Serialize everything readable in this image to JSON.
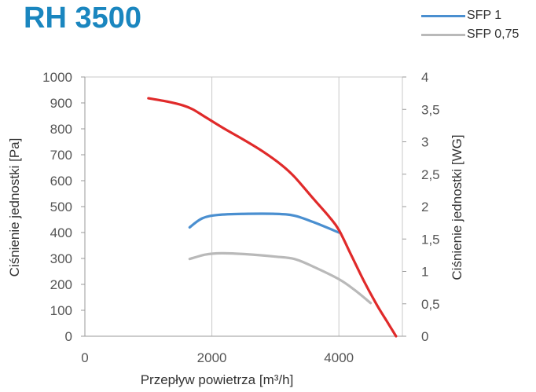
{
  "title": "RH 3500",
  "chart_data": {
    "type": "line",
    "title": "RH 3500",
    "xlabel": "Przepływ powietrza [m³/h]",
    "ylabel_left": "Ciśnienie jednostki [Pa]",
    "ylabel_right": "Ciśnienie jednostki [WG]",
    "xlim": [
      0,
      5000
    ],
    "ylim_left": [
      0,
      1000
    ],
    "ylim_right": [
      0,
      4
    ],
    "x_ticks": [
      {
        "value": 0,
        "label": "0"
      },
      {
        "value": 2000,
        "label": "2000"
      },
      {
        "value": 4000,
        "label": "4000"
      }
    ],
    "y_ticks_left": [
      {
        "value": 0,
        "label": "0"
      },
      {
        "value": 100,
        "label": "100"
      },
      {
        "value": 200,
        "label": "200"
      },
      {
        "value": 300,
        "label": "300"
      },
      {
        "value": 400,
        "label": "400"
      },
      {
        "value": 500,
        "label": "500"
      },
      {
        "value": 600,
        "label": "600"
      },
      {
        "value": 700,
        "label": "700"
      },
      {
        "value": 800,
        "label": "800"
      },
      {
        "value": 900,
        "label": "900"
      },
      {
        "value": 1000,
        "label": "1000"
      }
    ],
    "y_ticks_right": [
      {
        "value": 0,
        "label": "0"
      },
      {
        "value": 0.5,
        "label": "0,5"
      },
      {
        "value": 1,
        "label": "1"
      },
      {
        "value": 1.5,
        "label": "1,5"
      },
      {
        "value": 2,
        "label": "2"
      },
      {
        "value": 2.5,
        "label": "2,5"
      },
      {
        "value": 3,
        "label": "3"
      },
      {
        "value": 3.5,
        "label": "3,5"
      },
      {
        "value": 4,
        "label": "4"
      }
    ],
    "grid": {
      "vertical": true,
      "horizontal": false
    },
    "legend_position": "top-right",
    "series": [
      {
        "name": "SFP 1",
        "color": "#4a8fd0",
        "in_legend": true,
        "x": [
          1650,
          1850,
          2100,
          2500,
          3000,
          3300,
          3600,
          4000
        ],
        "y": [
          420,
          455,
          468,
          472,
          472,
          465,
          440,
          400
        ]
      },
      {
        "name": "SFP 0,75",
        "color": "#b9b9b9",
        "in_legend": true,
        "x": [
          1650,
          1900,
          2150,
          2500,
          3000,
          3300,
          3600,
          4000,
          4250,
          4500
        ],
        "y": [
          298,
          315,
          320,
          317,
          307,
          298,
          268,
          220,
          178,
          128
        ]
      },
      {
        "name": "",
        "color": "#e02a2a",
        "in_legend": false,
        "x": [
          1000,
          1300,
          1550,
          1700,
          1900,
          2200,
          2500,
          2800,
          3100,
          3300,
          3600,
          3850,
          4000,
          4200,
          4400,
          4600,
          4750,
          4900
        ],
        "y": [
          918,
          905,
          890,
          875,
          845,
          800,
          758,
          713,
          660,
          615,
          530,
          460,
          410,
          310,
          210,
          120,
          60,
          0
        ]
      }
    ]
  }
}
